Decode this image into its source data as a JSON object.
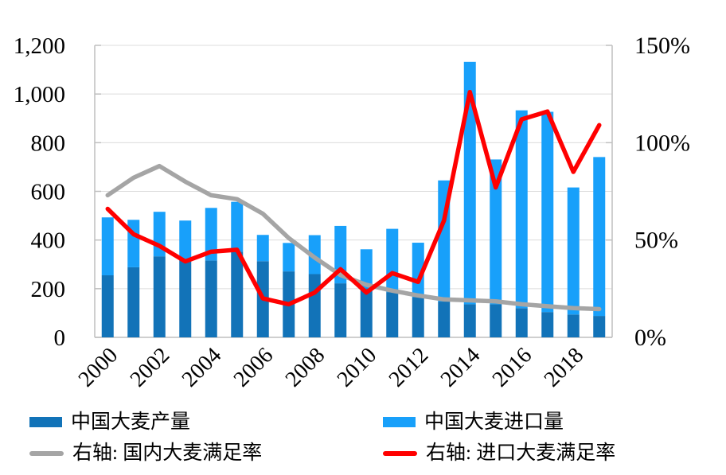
{
  "chart_data": {
    "type": "bar",
    "subtype": "stacked-bars-with-right-axis-lines",
    "title": "",
    "x": [
      2000,
      2001,
      2002,
      2003,
      2004,
      2005,
      2006,
      2007,
      2008,
      2009,
      2010,
      2011,
      2012,
      2013,
      2014,
      2015,
      2016,
      2017,
      2018,
      2019
    ],
    "x_tick_labels": [
      "2000",
      "2002",
      "2004",
      "2006",
      "2008",
      "2010",
      "2012",
      "2014",
      "2016",
      "2018"
    ],
    "left_axis": {
      "min": 0,
      "max": 1200,
      "step": 200,
      "tick_labels": [
        "0",
        "200",
        "400",
        "600",
        "800",
        "1,000",
        "1,200"
      ]
    },
    "right_axis": {
      "min": 0,
      "max": 150,
      "step": 50,
      "tick_labels": [
        "0%",
        "50%",
        "100%",
        "150%"
      ]
    },
    "series": [
      {
        "name": "中国大麦产量",
        "type": "bar",
        "stack": "total",
        "axis": "left",
        "color": "#1273B8",
        "values": [
          255,
          288,
          333,
          320,
          316,
          352,
          313,
          271,
          260,
          222,
          201,
          186,
          165,
          147,
          136,
          136,
          120,
          104,
          94,
          88
        ]
      },
      {
        "name": "中国大麦进口量",
        "type": "bar",
        "stack": "total",
        "axis": "left",
        "color": "#18A0FA",
        "values": [
          238,
          195,
          183,
          160,
          216,
          205,
          108,
          117,
          160,
          236,
          161,
          260,
          224,
          498,
          996,
          595,
          813,
          823,
          522,
          653
        ]
      },
      {
        "name": "右轴: 国内大麦满足率",
        "type": "line",
        "axis": "right",
        "color": "#A5A5A5",
        "unit": "%",
        "values": [
          73,
          82,
          88,
          80,
          73,
          71,
          63.5,
          51,
          41,
          32,
          27,
          24,
          21.5,
          19.5,
          19,
          18.5,
          17,
          16,
          15,
          14.5
        ]
      },
      {
        "name": "右轴: 进口大麦满足率",
        "type": "line",
        "axis": "right",
        "color": "#FF0000",
        "unit": "%",
        "values": [
          66,
          53,
          47,
          39,
          44,
          45,
          20,
          17,
          23,
          35,
          23,
          33,
          28.5,
          60,
          126,
          77,
          112,
          116,
          85,
          109
        ]
      }
    ],
    "grid": true,
    "legend_position": "bottom"
  },
  "legend": {
    "items": [
      {
        "label": "中国大麦产量",
        "swatch": "bar",
        "color": "#1273B8"
      },
      {
        "label": "中国大麦进口量",
        "swatch": "bar",
        "color": "#18A0FA"
      },
      {
        "label": "右轴: 国内大麦满足率",
        "swatch": "line",
        "color": "#A5A5A5"
      },
      {
        "label": "右轴: 进口大麦满足率",
        "swatch": "line",
        "color": "#FF0000"
      }
    ]
  },
  "colors": {
    "production": "#1273B8",
    "imports": "#18A0FA",
    "domestic_rate": "#A5A5A5",
    "import_rate": "#FF0000",
    "gridline": "#DCDCDC",
    "axis": "#BFBFBF",
    "text": "#000000"
  }
}
